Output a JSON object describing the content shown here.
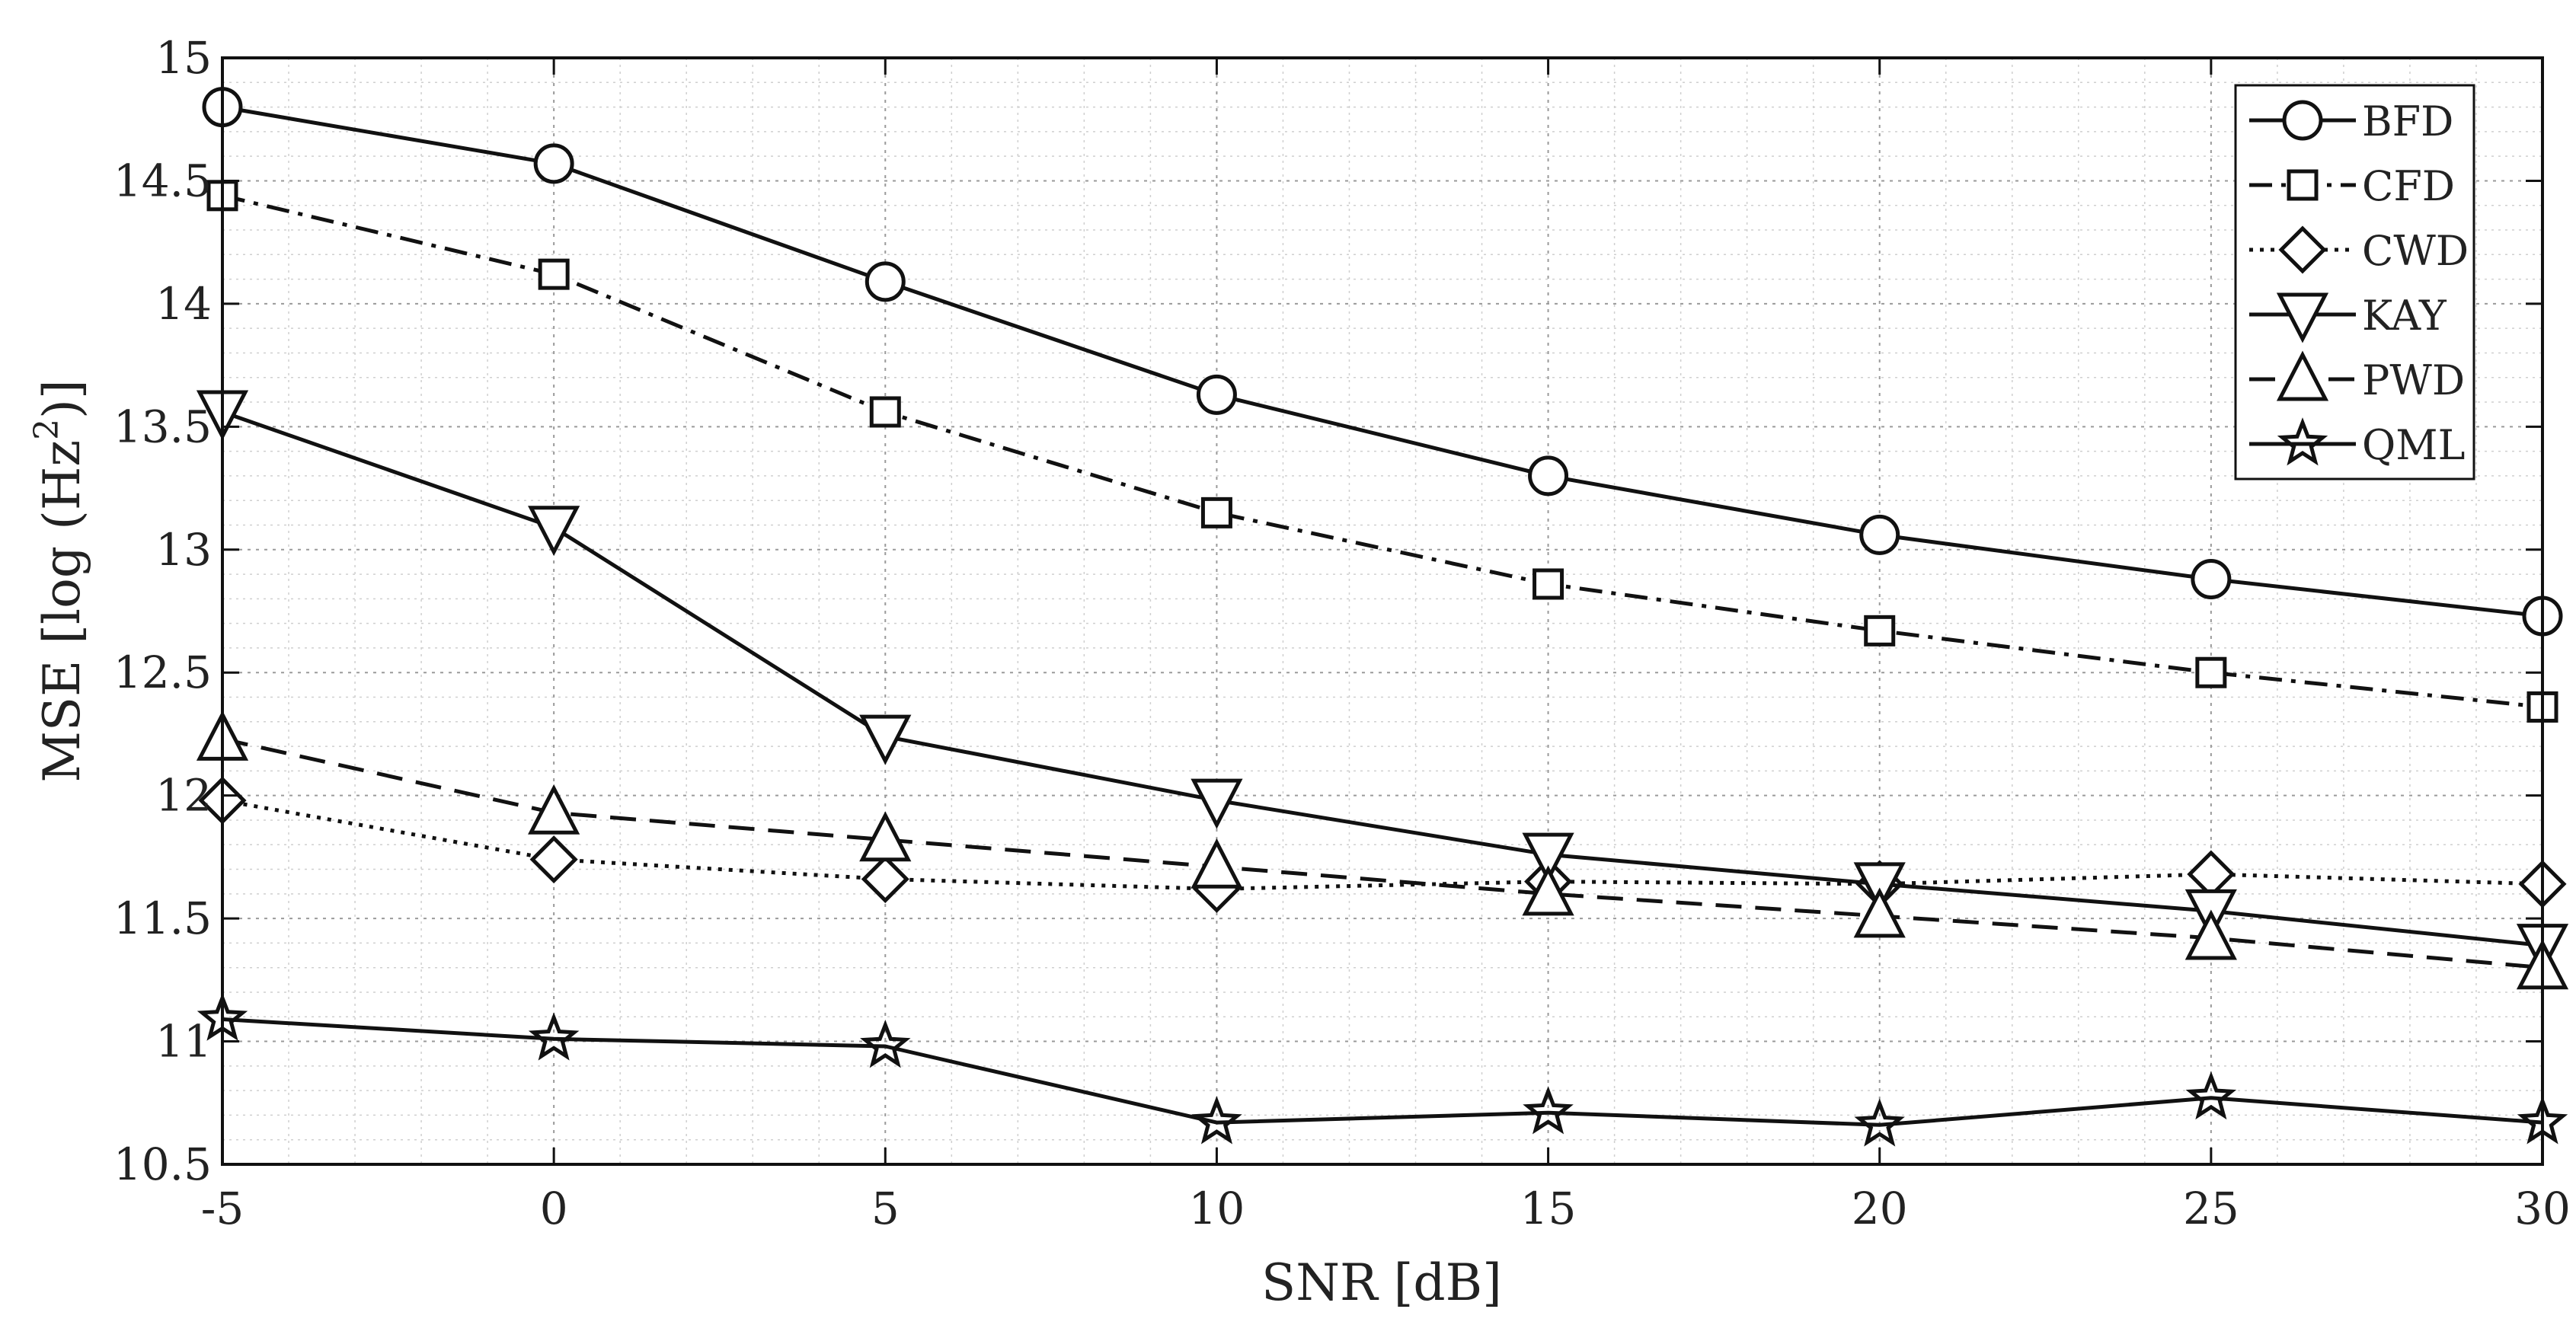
{
  "chart_data": {
    "type": "line",
    "title": "",
    "xlabel": "SNR [dB]",
    "ylabel_parts": {
      "prefix": "MSE [log (Hz",
      "sup": "2",
      "suffix": ")]"
    },
    "x": [
      -5,
      0,
      5,
      10,
      15,
      20,
      25,
      30
    ],
    "xlim": [
      -5,
      30
    ],
    "ylim": [
      10.5,
      15
    ],
    "xticks": [
      -5,
      0,
      5,
      10,
      15,
      20,
      25,
      30
    ],
    "xtick_labels": [
      "-5",
      "0",
      "5",
      "10",
      "15",
      "20",
      "25",
      "30"
    ],
    "yticks": [
      10.5,
      11,
      11.5,
      12,
      12.5,
      13,
      13.5,
      14,
      14.5,
      15
    ],
    "ytick_labels": [
      "10.5",
      "11",
      "11.5",
      "12",
      "12.5",
      "13",
      "13.5",
      "14",
      "14.5",
      "15"
    ],
    "grid": true,
    "legend_position": "top-right",
    "series": [
      {
        "name": "BFD",
        "marker": "circle",
        "dash": "solid",
        "values": [
          14.8,
          14.57,
          14.09,
          13.63,
          13.3,
          13.06,
          12.88,
          12.73
        ]
      },
      {
        "name": "CFD",
        "marker": "square",
        "dash": "dashdot",
        "values": [
          14.44,
          14.12,
          13.56,
          13.15,
          12.86,
          12.67,
          12.5,
          12.36
        ]
      },
      {
        "name": "CWD",
        "marker": "diamond",
        "dash": "dotted",
        "values": [
          11.98,
          11.74,
          11.66,
          11.62,
          11.65,
          11.64,
          11.68,
          11.64
        ]
      },
      {
        "name": "KAY",
        "marker": "triangle-down",
        "dash": "solid",
        "values": [
          13.56,
          13.09,
          12.24,
          11.98,
          11.76,
          11.64,
          11.53,
          11.39
        ]
      },
      {
        "name": "PWD",
        "marker": "triangle-up",
        "dash": "dashed",
        "values": [
          12.23,
          11.93,
          11.82,
          11.71,
          11.6,
          11.51,
          11.42,
          11.3
        ]
      },
      {
        "name": "QML",
        "marker": "star",
        "dash": "solid",
        "values": [
          11.09,
          11.01,
          10.98,
          10.67,
          10.71,
          10.66,
          10.77,
          10.67
        ]
      }
    ]
  }
}
